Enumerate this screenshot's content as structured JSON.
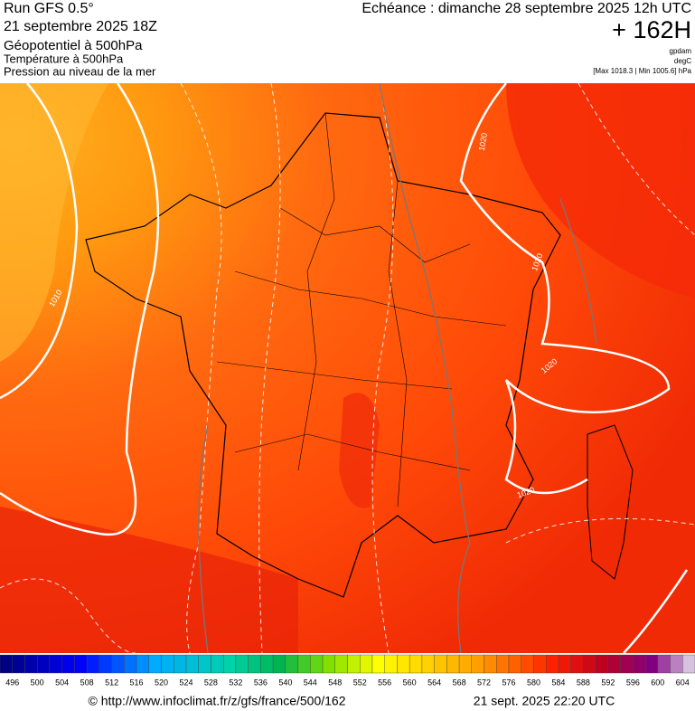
{
  "header": {
    "run": "Run GFS 0.5°",
    "run_date": "21 septembre 2025 18Z",
    "field_1": "Géopotentiel à 500hPa",
    "field_2": "Température à 500hPa",
    "field_3": "Pression au niveau de la mer",
    "echeance": "Echéance : dimanche 28 septembre 2025 12h UTC",
    "lead": "+ 162H",
    "unit_1": "gpdam",
    "unit_2": "degC",
    "pressure_range": "[Max 1018.3 | Min 1005.6] hPa"
  },
  "map": {
    "isobar_labels": [
      "1020",
      "1010",
      "1020",
      "1020",
      "1020"
    ]
  },
  "scale": {
    "labels": [
      496,
      500,
      504,
      508,
      512,
      516,
      520,
      524,
      528,
      532,
      536,
      540,
      544,
      548,
      552,
      556,
      560,
      564,
      568,
      572,
      576,
      580,
      584,
      588,
      592,
      596,
      600,
      604
    ]
  },
  "footer": {
    "source": "© http://www.infoclimat.fr/z/gfs/france/500/162",
    "generated": "21 sept. 2025 22:20 UTC"
  }
}
